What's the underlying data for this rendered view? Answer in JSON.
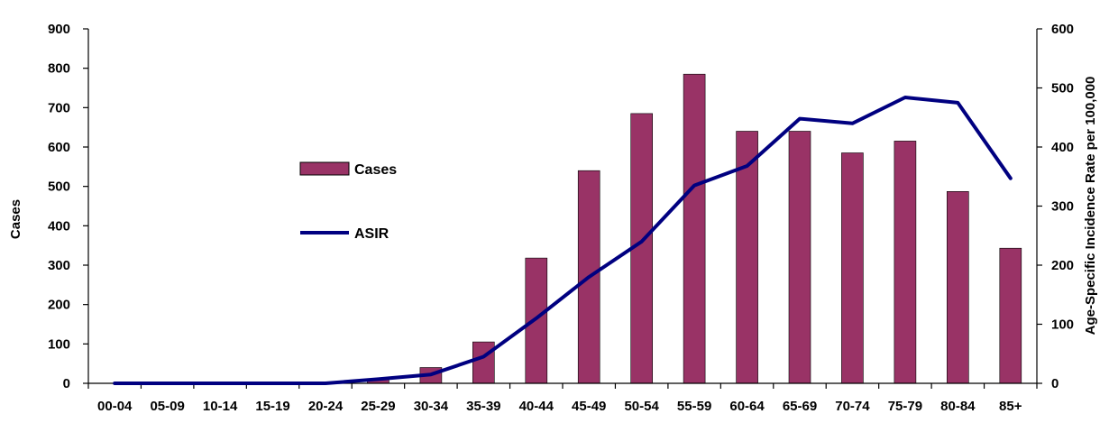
{
  "chart_data": {
    "type": "bar",
    "categories": [
      "00-04",
      "05-09",
      "10-14",
      "15-19",
      "20-24",
      "25-29",
      "30-34",
      "35-39",
      "40-44",
      "45-49",
      "50-54",
      "55-59",
      "60-64",
      "65-69",
      "70-74",
      "75-79",
      "80-84",
      "85+"
    ],
    "series": [
      {
        "name": "Cases",
        "type": "bar",
        "axis": "left",
        "color": "#993366",
        "values": [
          0,
          0,
          0,
          0,
          0,
          10,
          40,
          105,
          318,
          540,
          685,
          785,
          640,
          640,
          585,
          615,
          487,
          343
        ]
      },
      {
        "name": "ASIR",
        "type": "line",
        "axis": "right",
        "color": "#000080",
        "values": [
          0,
          0,
          0,
          0,
          0,
          7,
          15,
          45,
          110,
          180,
          240,
          335,
          368,
          448,
          440,
          484,
          475,
          347
        ]
      }
    ],
    "ylabel": "Cases",
    "y2label": "Age-Specific Incidence Rate per 100,000",
    "ylim": [
      0,
      900
    ],
    "y2lim": [
      0,
      600
    ],
    "yticks": [
      "0",
      "100",
      "200",
      "300",
      "400",
      "500",
      "600",
      "700",
      "800",
      "900"
    ],
    "y2ticks": [
      "0",
      "100",
      "200",
      "300",
      "400",
      "500",
      "600"
    ],
    "grid": false,
    "legend_position": "center-left"
  }
}
